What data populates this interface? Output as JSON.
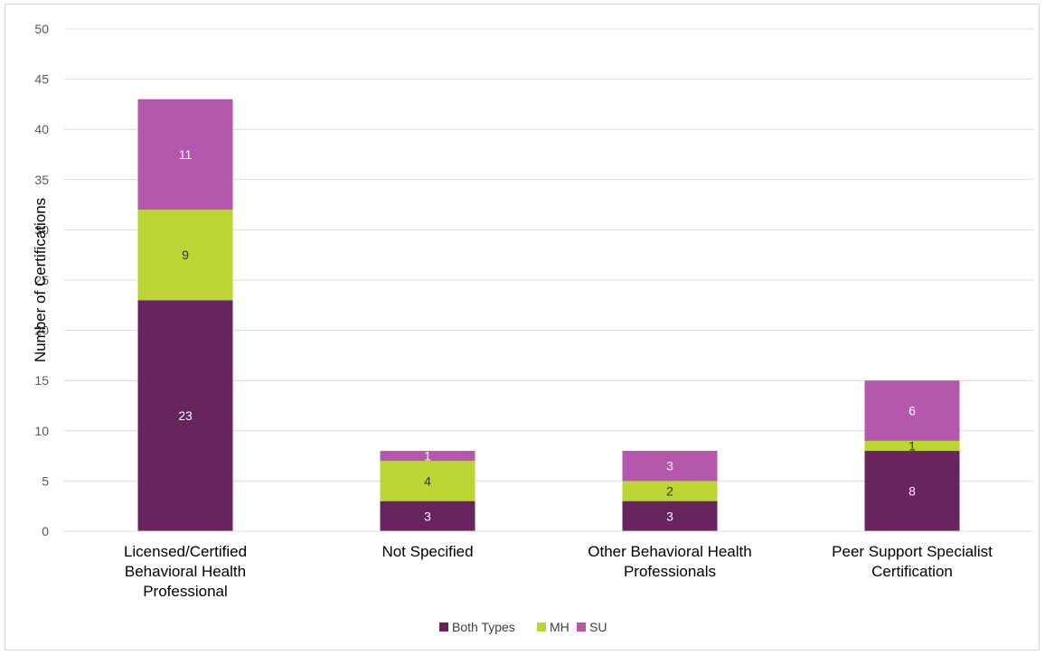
{
  "chart_data": {
    "type": "bar",
    "stacked": true,
    "categories": [
      [
        "Licensed/Certified",
        "Behavioral Health",
        "Professional"
      ],
      [
        "Not Specified"
      ],
      [
        "Other Behavioral Health",
        "Professionals"
      ],
      [
        "Peer Support Specialist",
        "Certification"
      ]
    ],
    "series": [
      {
        "name": "Both Types",
        "color": "#68245f",
        "label_color": "#ffffff",
        "values": [
          23,
          3,
          3,
          8
        ]
      },
      {
        "name": "MH",
        "color": "#bbd633",
        "label_color": "#333333",
        "values": [
          9,
          4,
          2,
          1
        ]
      },
      {
        "name": "SU",
        "color": "#b657ae",
        "label_color": "#ffffff",
        "values": [
          11,
          1,
          3,
          6
        ]
      }
    ],
    "ylabel": "Number of Certifications",
    "xlabel": "",
    "ylim": [
      0,
      50
    ],
    "yticks": [
      0,
      5,
      10,
      15,
      20,
      25,
      30,
      35,
      40,
      45,
      50
    ],
    "grid": true,
    "legend": "bottom"
  }
}
